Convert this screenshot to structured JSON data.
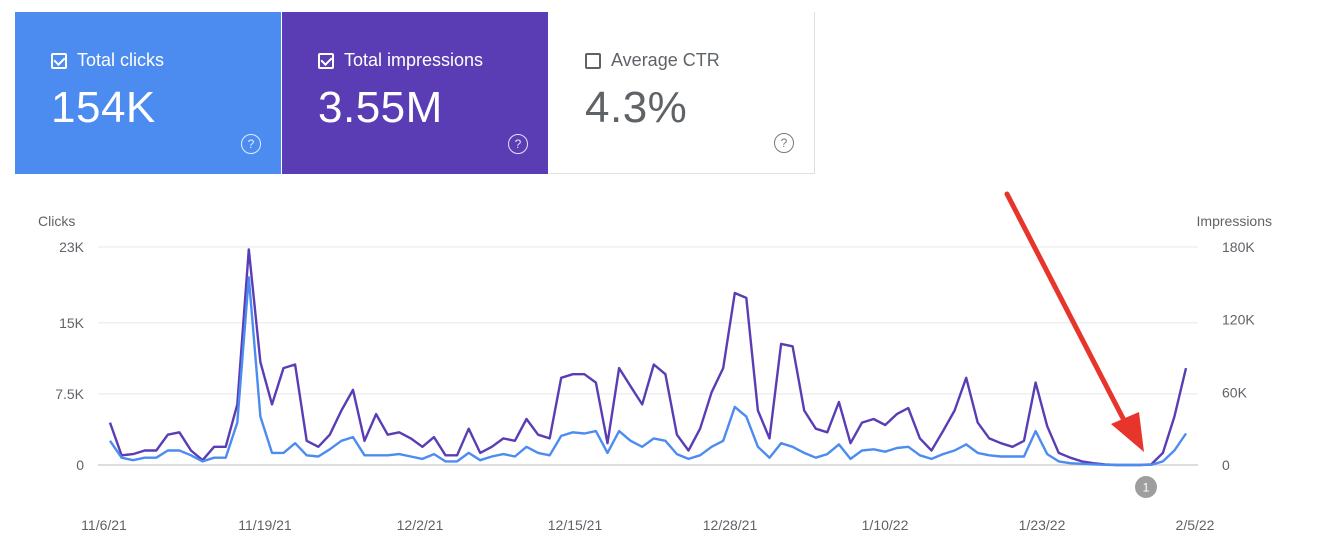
{
  "metrics": [
    {
      "label": "Total clicks",
      "value": "154K",
      "checked": true,
      "color": "#4c8cf0"
    },
    {
      "label": "Total impressions",
      "value": "3.55M",
      "checked": true,
      "color": "#5a3db4"
    },
    {
      "label": "Average CTR",
      "value": "4.3%",
      "checked": false,
      "color": "#ffffff"
    }
  ],
  "help_glyph": "?",
  "annotation_badge": "1",
  "chart_data": {
    "type": "line",
    "x_ticks": [
      "11/6/21",
      "11/19/21",
      "12/2/21",
      "12/15/21",
      "12/28/21",
      "1/10/22",
      "1/23/22",
      "2/5/22"
    ],
    "y_left": {
      "label": "Clicks",
      "ticks": [
        "0",
        "7.5K",
        "15K",
        "23K"
      ],
      "ylim": [
        0,
        23000
      ]
    },
    "y_right": {
      "label": "Impressions",
      "ticks": [
        "0",
        "60K",
        "120K",
        "180K"
      ],
      "ylim": [
        0,
        180000
      ]
    },
    "series": [
      {
        "axis": "right",
        "color": "#5a3db4",
        "values": [
          35000,
          8000,
          9000,
          12000,
          12000,
          25000,
          27000,
          12000,
          4000,
          15000,
          15000,
          50000,
          178000,
          85000,
          50000,
          80000,
          83000,
          20000,
          15000,
          25000,
          45000,
          62000,
          20000,
          42000,
          25000,
          27000,
          22000,
          15000,
          23000,
          8000,
          8000,
          30000,
          10000,
          15000,
          22000,
          20000,
          38000,
          25000,
          22000,
          72000,
          75000,
          75000,
          68000,
          18000,
          80000,
          65000,
          50000,
          83000,
          75000,
          25000,
          12000,
          30000,
          60000,
          80000,
          142000,
          138000,
          45000,
          22000,
          100000,
          98000,
          45000,
          30000,
          27000,
          52000,
          18000,
          35000,
          38000,
          33000,
          42000,
          47000,
          22000,
          12000,
          28000,
          45000,
          72000,
          35000,
          22000,
          18000,
          15000,
          20000,
          68000,
          32000,
          10000,
          6000,
          3000,
          1500,
          500,
          0,
          0,
          0,
          500,
          10000,
          40000,
          80000
        ]
      },
      {
        "axis": "right",
        "color": "#4c8cf0",
        "values": [
          20000,
          6000,
          4000,
          6000,
          6000,
          12000,
          12000,
          8000,
          3000,
          6000,
          6000,
          35000,
          155000,
          40000,
          10000,
          10000,
          18000,
          8000,
          7000,
          13000,
          20000,
          23000,
          8000,
          8000,
          8000,
          9000,
          7000,
          5000,
          9000,
          3000,
          3000,
          10000,
          4000,
          7000,
          9000,
          7000,
          15000,
          10000,
          8000,
          24000,
          27000,
          26000,
          28000,
          10000,
          28000,
          20000,
          15000,
          22000,
          20000,
          9000,
          5000,
          8000,
          15000,
          20000,
          48000,
          40000,
          15000,
          6000,
          18000,
          15000,
          10000,
          6000,
          9000,
          17000,
          5000,
          12000,
          13000,
          11000,
          14000,
          15000,
          8000,
          5000,
          9000,
          12000,
          17000,
          10000,
          8000,
          7000,
          7000,
          7000,
          28000,
          9000,
          3000,
          1500,
          1000,
          500,
          200,
          0,
          0,
          0,
          200,
          3000,
          12000,
          26000
        ]
      }
    ],
    "grid": true,
    "legend": "none"
  }
}
